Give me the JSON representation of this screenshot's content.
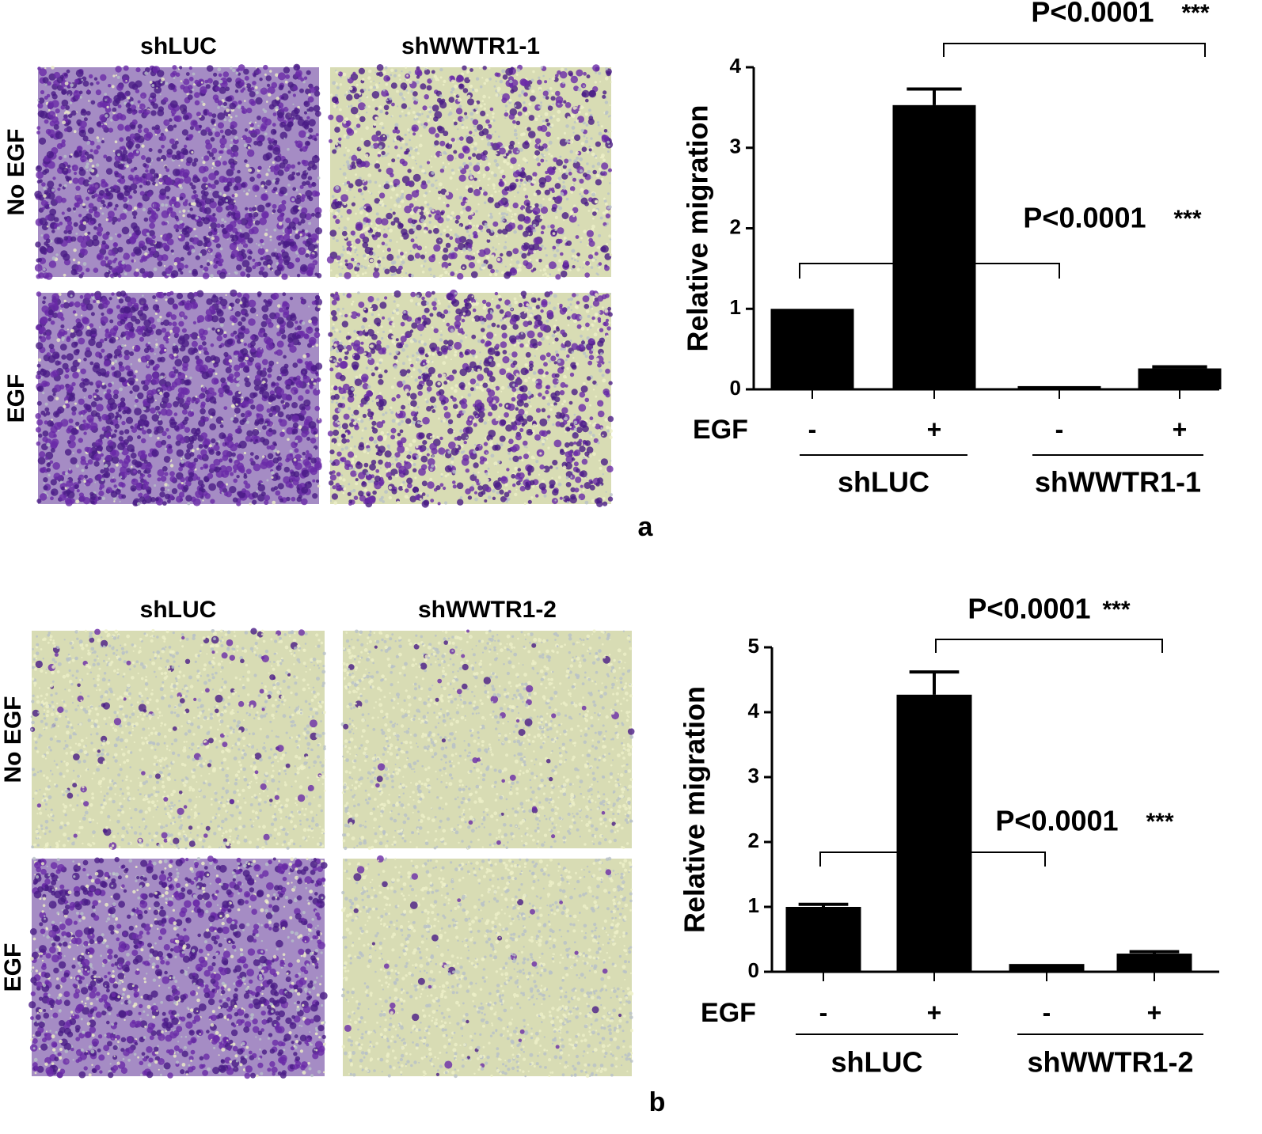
{
  "chart_data": [
    {
      "type": "bar",
      "panel_label": "a",
      "ylabel": "Relative migration",
      "x_label": "EGF",
      "categories": [
        "-",
        "+",
        "-",
        "+"
      ],
      "groups": [
        "shLUC",
        "shWWTR1-1"
      ],
      "values": [
        1.0,
        3.53,
        0.04,
        0.26
      ],
      "errors": [
        0,
        0.2,
        0,
        0.02
      ],
      "color": "#000000",
      "ylim": [
        0,
        4
      ],
      "yticks": [
        0,
        1,
        2,
        3,
        4
      ],
      "annotations": [
        {
          "text": "P<0.0001",
          "stars": "***"
        },
        {
          "text": "P<0.0001",
          "stars": "***"
        }
      ]
    },
    {
      "type": "bar",
      "panel_label": "b",
      "ylabel": "Relative migration",
      "x_label": "EGF",
      "categories": [
        "-",
        "+",
        "-",
        "+"
      ],
      "groups": [
        "shLUC",
        "shWWTR1-2"
      ],
      "values": [
        1.0,
        4.27,
        0.12,
        0.28
      ],
      "errors": [
        0.04,
        0.35,
        0,
        0.03
      ],
      "color": "#000000",
      "ylim": [
        0,
        5
      ],
      "yticks": [
        0,
        1,
        2,
        3,
        4,
        5
      ],
      "annotations": [
        {
          "text": "P<0.0001",
          "stars": "***"
        },
        {
          "text": "P<0.0001",
          "stars": "***"
        }
      ]
    }
  ],
  "micrographs": [
    {
      "columns": [
        "shLUC",
        "shWWTR1-1"
      ],
      "rows": [
        "No EGF",
        "EGF"
      ]
    },
    {
      "columns": [
        "shLUC",
        "shWWTR1-2"
      ],
      "rows": [
        "No EGF",
        "EGF"
      ]
    }
  ]
}
